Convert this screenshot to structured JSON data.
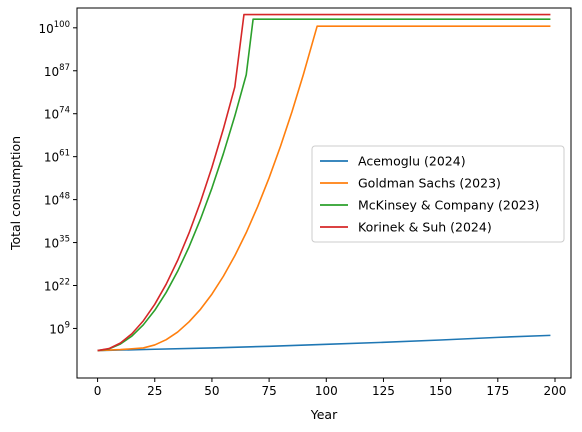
{
  "chart_data": {
    "type": "line",
    "xlabel": "Year",
    "ylabel": "Total consumption",
    "xlim": [
      -9,
      207
    ],
    "ylim_log10": [
      -6,
      106
    ],
    "y_scale": "log",
    "x_ticks": [
      0,
      25,
      50,
      75,
      100,
      125,
      150,
      175,
      200
    ],
    "x_tick_labels": [
      "0",
      "25",
      "50",
      "75",
      "100",
      "125",
      "150",
      "175",
      "200"
    ],
    "y_ticks_log10": [
      9,
      22,
      35,
      48,
      61,
      74,
      87,
      100
    ],
    "y_tick_labels": [
      {
        "base": "10",
        "exp": "9"
      },
      {
        "base": "10",
        "exp": "22"
      },
      {
        "base": "10",
        "exp": "35"
      },
      {
        "base": "10",
        "exp": "48"
      },
      {
        "base": "10",
        "exp": "61"
      },
      {
        "base": "10",
        "exp": "74"
      },
      {
        "base": "10",
        "exp": "87"
      },
      {
        "base": "10",
        "exp": "100"
      }
    ],
    "legend_position": "center-right",
    "grid": false,
    "series": [
      {
        "name": "Acemoglu (2024)",
        "color": "#1f77b4",
        "x": [
          0,
          25,
          50,
          75,
          100,
          125,
          150,
          175,
          198
        ],
        "y_log10": [
          2.3,
          2.7,
          3.1,
          3.6,
          4.2,
          4.8,
          5.5,
          6.3,
          6.9
        ]
      },
      {
        "name": "Goldman Sachs (2023)",
        "color": "#ff7f0e",
        "x": [
          0,
          10,
          20,
          25,
          30,
          35,
          40,
          45,
          50,
          55,
          60,
          65,
          70,
          75,
          80,
          85,
          90,
          96,
          198
        ],
        "y_log10": [
          2.3,
          2.6,
          3.1,
          4.0,
          5.6,
          7.9,
          11.0,
          14.8,
          19.4,
          24.8,
          31.0,
          38.0,
          45.9,
          54.6,
          64.2,
          74.6,
          85.9,
          100.5,
          100.5
        ]
      },
      {
        "name": "McKinsey & Company (2023)",
        "color": "#2ca02c",
        "x": [
          0,
          5,
          10,
          15,
          20,
          25,
          30,
          35,
          40,
          45,
          50,
          55,
          60,
          65,
          68,
          198
        ],
        "y_log10": [
          2.3,
          2.8,
          4.3,
          6.7,
          10.1,
          14.5,
          19.9,
          26.3,
          33.7,
          42.1,
          51.5,
          61.9,
          73.3,
          85.8,
          102.6,
          102.6
        ]
      },
      {
        "name": "Korinek & Suh (2024)",
        "color": "#d62728",
        "x": [
          0,
          5,
          10,
          15,
          20,
          25,
          30,
          35,
          40,
          45,
          50,
          55,
          60,
          64,
          198
        ],
        "y_log10": [
          2.3,
          2.9,
          4.6,
          7.4,
          11.3,
          16.3,
          22.4,
          29.6,
          37.9,
          47.3,
          57.8,
          69.4,
          82.1,
          104.0,
          104.0
        ]
      }
    ]
  }
}
